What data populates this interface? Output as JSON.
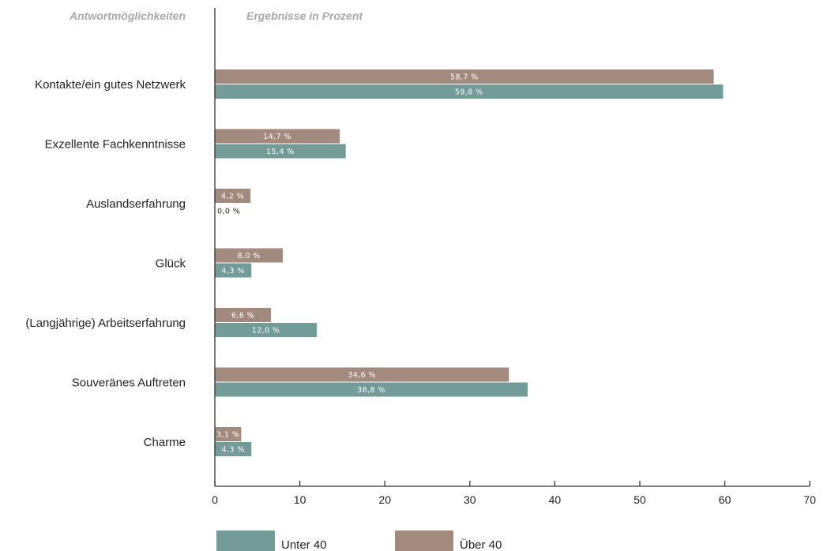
{
  "headers": {
    "categories": "Antwortmöglichkeiten",
    "values": "Ergebnisse in Prozent"
  },
  "colors": {
    "unter40": "#739b98",
    "ueber40": "#a38a7e",
    "axis": "#333333",
    "label_inside": "#ffffff",
    "label_outside": "#222222"
  },
  "chart_data": {
    "type": "bar",
    "orientation": "horizontal",
    "categories": [
      "Kontakte/ein gutes Netzwerk",
      "Exzellente Fachkenntnisse",
      "Auslandserfahrung",
      "Glück",
      "(Langjährige) Arbeitserfahrung",
      "Souveränes Auftreten",
      "Charme"
    ],
    "series": [
      {
        "name": "Über 40",
        "color": "#a38a7e",
        "values": [
          58.7,
          14.7,
          4.2,
          8.0,
          6.6,
          34.6,
          3.1
        ],
        "labels": [
          "58,7 %",
          "14,7 %",
          "4,2 %",
          "8,0 %",
          "6,6 %",
          "34,6 %",
          "3,1 %"
        ]
      },
      {
        "name": "Unter 40",
        "color": "#739b98",
        "values": [
          59.8,
          15.4,
          0.0,
          4.3,
          12.0,
          36.8,
          4.3
        ],
        "labels": [
          "59,8 %",
          "15,4 %",
          "0,0 %",
          "4,3 %",
          "12,0 %",
          "36,8 %",
          "4,3 %"
        ]
      }
    ],
    "xlim": [
      0,
      70
    ],
    "xticks": [
      0,
      10,
      20,
      30,
      40,
      50,
      60,
      70
    ],
    "xtick_labels": [
      "0",
      "10",
      "20",
      "30",
      "40",
      "50",
      "60",
      "70"
    ],
    "grid": false,
    "legend": {
      "position": "bottom",
      "entries": [
        "Unter 40",
        "Über 40"
      ]
    }
  }
}
